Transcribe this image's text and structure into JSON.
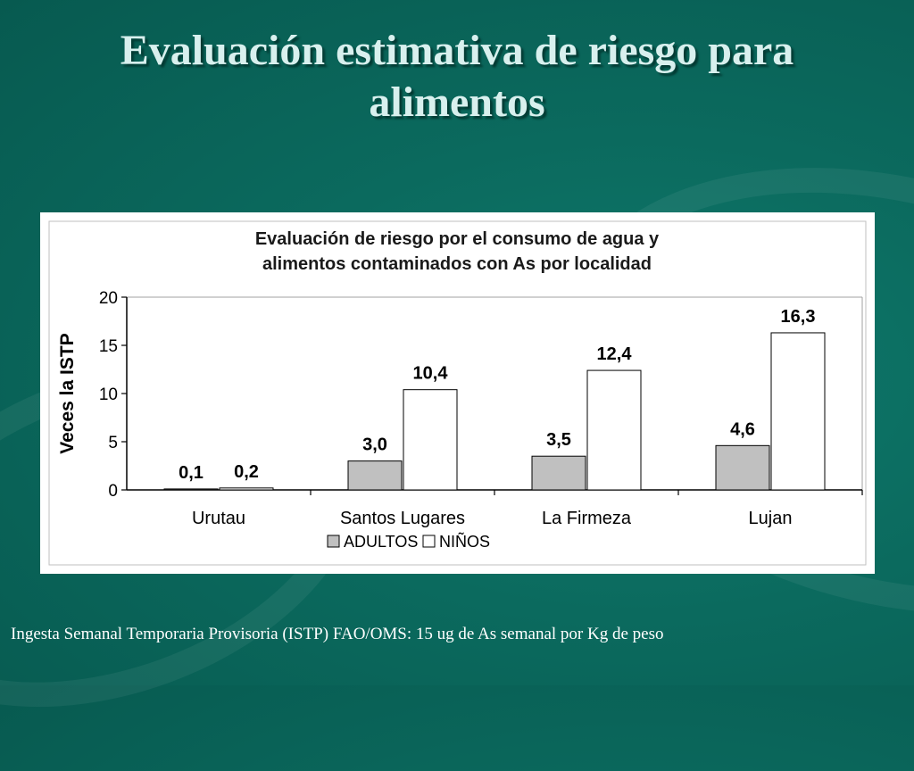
{
  "slide": {
    "title_line1": "Evaluación estimativa de riesgo para",
    "title_line2": "alimentos",
    "footnote": "Ingesta Semanal Temporaria Provisoria (ISTP) FAO/OMS: 15 ug de As semanal por Kg de peso"
  },
  "colors": {
    "background": "#0b6a5e",
    "title_text": "#d8f0ee",
    "adultos_fill": "#c0c0c0",
    "ninos_fill": "#ffffff"
  },
  "chart_data": {
    "type": "bar",
    "title": [
      "Evaluación de riesgo  por el consumo de agua y",
      "alimentos contaminados con As por localidad"
    ],
    "xlabel": "",
    "ylabel": "Veces la ISTP",
    "ylim": [
      0,
      20
    ],
    "yticks": [
      0,
      5,
      10,
      15,
      20
    ],
    "grid": false,
    "legend_position": "bottom",
    "categories": [
      "Urutau",
      "Santos Lugares",
      "La Firmeza",
      "Lujan"
    ],
    "series": [
      {
        "name": "ADULTOS",
        "values": [
          0.1,
          3.0,
          3.5,
          4.6
        ],
        "labels": [
          "0,1",
          "3,0",
          "3,5",
          "4,6"
        ],
        "color": "#c0c0c0"
      },
      {
        "name": "NIÑOS",
        "values": [
          0.2,
          10.4,
          12.4,
          16.3
        ],
        "labels": [
          "0,2",
          "10,4",
          "12,4",
          "16,3"
        ],
        "color": "#ffffff"
      }
    ]
  }
}
